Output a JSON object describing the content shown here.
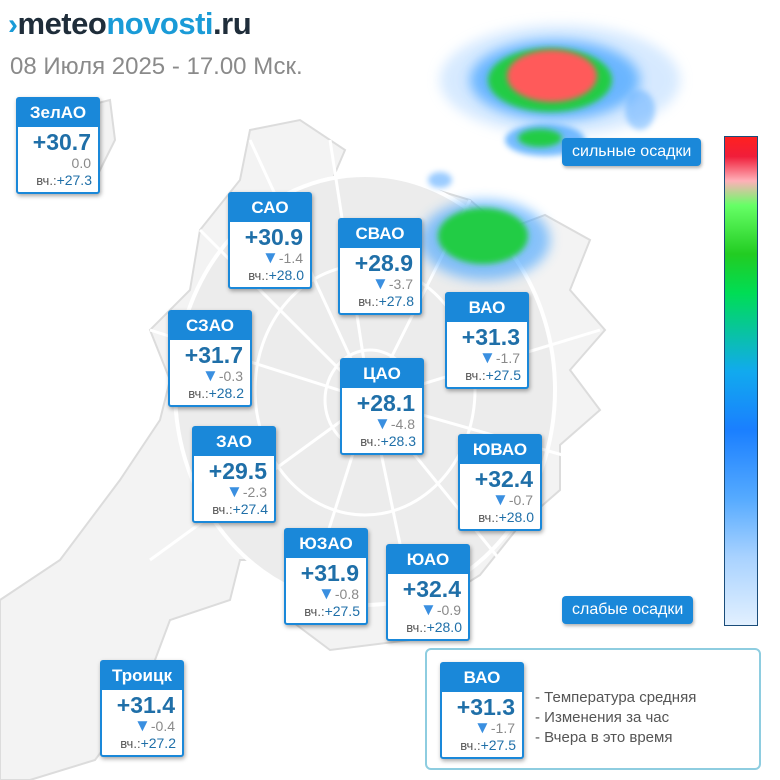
{
  "logo": {
    "mark": "›",
    "part1": "meteo",
    "part2": "novosti",
    "part3": ".ru"
  },
  "date_line": "08 Июля 2025 - 17.00 Мск.",
  "stations": [
    {
      "name": "ЗелАО",
      "temp": "+30.7",
      "change_arrow": "",
      "change": "0.0",
      "yest_label": "вч.:",
      "yest": "+27.3"
    },
    {
      "name": "САО",
      "temp": "+30.9",
      "change_arrow": "▼",
      "change": "-1.4",
      "yest_label": "вч.:",
      "yest": "+28.0"
    },
    {
      "name": "СВАО",
      "temp": "+28.9",
      "change_arrow": "▼",
      "change": "-3.7",
      "yest_label": "вч.:",
      "yest": "+27.8"
    },
    {
      "name": "ВАО",
      "temp": "+31.3",
      "change_arrow": "▼",
      "change": "-1.7",
      "yest_label": "вч.:",
      "yest": "+27.5"
    },
    {
      "name": "СЗАО",
      "temp": "+31.7",
      "change_arrow": "▼",
      "change": "-0.3",
      "yest_label": "вч.:",
      "yest": "+28.2"
    },
    {
      "name": "ЦАО",
      "temp": "+28.1",
      "change_arrow": "▼",
      "change": "-4.8",
      "yest_label": "вч.:",
      "yest": "+28.3"
    },
    {
      "name": "ЗАО",
      "temp": "+29.5",
      "change_arrow": "▼",
      "change": "-2.3",
      "yest_label": "вч.:",
      "yest": "+27.4"
    },
    {
      "name": "ЮВАО",
      "temp": "+32.4",
      "change_arrow": "▼",
      "change": "-0.7",
      "yest_label": "вч.:",
      "yest": "+28.0"
    },
    {
      "name": "ЮЗАО",
      "temp": "+31.9",
      "change_arrow": "▼",
      "change": "-0.8",
      "yest_label": "вч.:",
      "yest": "+27.5"
    },
    {
      "name": "ЮАО",
      "temp": "+32.4",
      "change_arrow": "▼",
      "change": "-0.9",
      "yest_label": "вч.:",
      "yest": "+28.0"
    },
    {
      "name": "Троицк",
      "temp": "+31.4",
      "change_arrow": "▼",
      "change": "-0.4",
      "yest_label": "вч.:",
      "yest": "+27.2"
    }
  ],
  "precip_scale": {
    "high_label": "сильные осадки",
    "low_label": "слабые осадки",
    "colors": {
      "high": "#ff2020",
      "mid": "#22cc22",
      "low_blue": "#1a7fff",
      "lightest": "#e2f0ff"
    }
  },
  "legend": {
    "example": {
      "name": "ВАО",
      "temp": "+31.3",
      "change_arrow": "▼",
      "change": "-1.7",
      "yest_label": "вч.:",
      "yest": "+27.5"
    },
    "items": [
      "Температура средняя",
      "Изменения за час",
      "Вчера в это время"
    ]
  },
  "colors": {
    "accent": "#1a88d9",
    "temp_text": "#1f6fa8",
    "arrow": "#3a8fe0"
  }
}
